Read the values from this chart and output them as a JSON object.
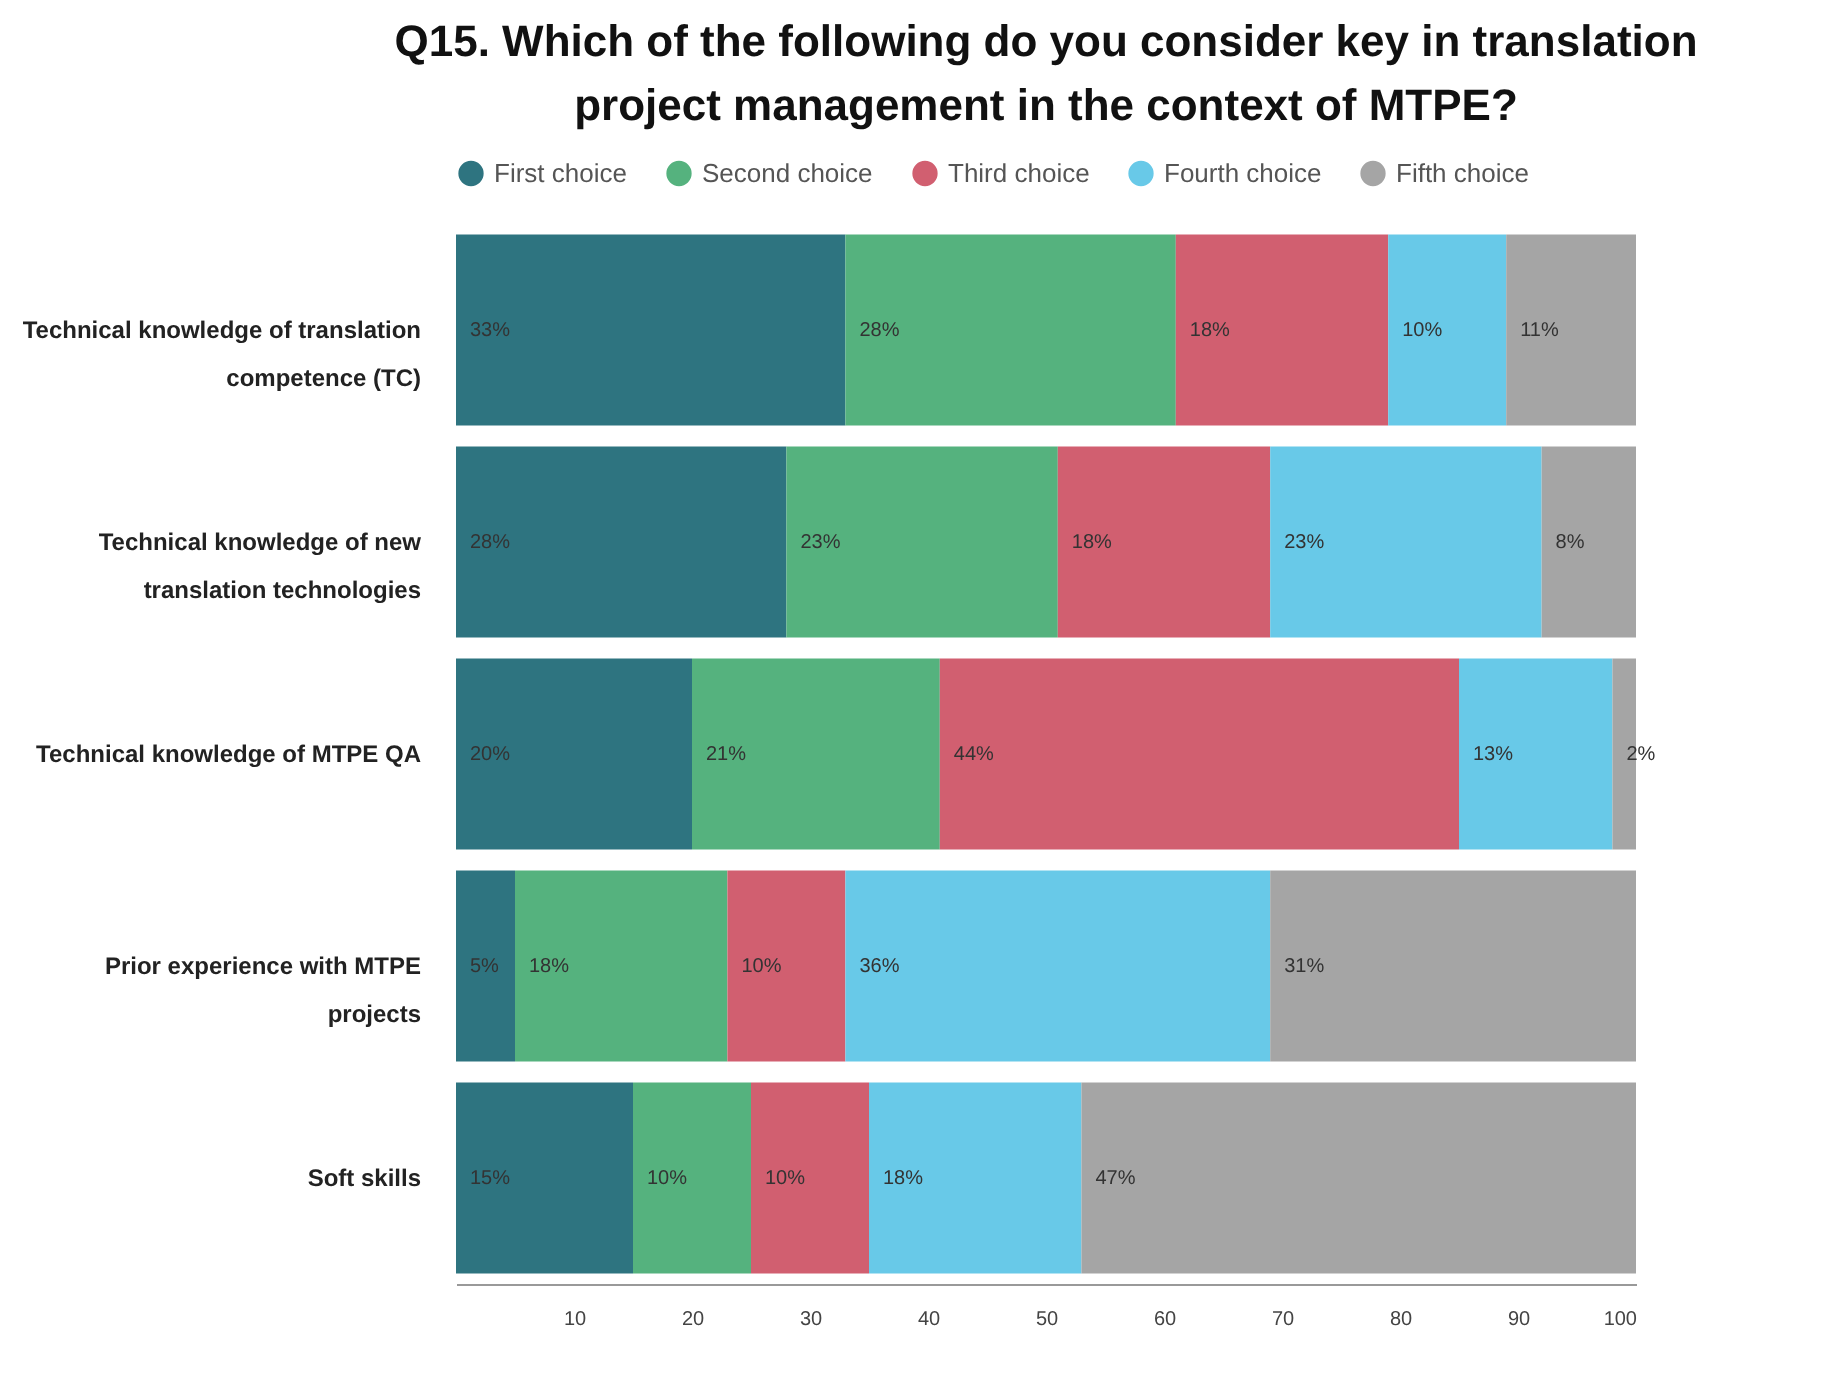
{
  "chart_data": {
    "type": "bar",
    "orientation": "horizontal",
    "stacked": true,
    "title": "Q15. Which of the following do you consider key in translation project management in the context of MTPE?",
    "categories": [
      "Technical knowledge of translation competence (TC)",
      "Technical knowledge of new translation technologies",
      "Technical knowledge of MTPE QA",
      "Prior experience with MTPE projects",
      "Soft skills"
    ],
    "series": [
      {
        "name": "First choice",
        "color": "#2e7480",
        "values": [
          33,
          28,
          20,
          5,
          15
        ],
        "value_labels": [
          "33%",
          "28%",
          "20%",
          "5%",
          "15%"
        ]
      },
      {
        "name": "Second choice",
        "color": "#55b27e",
        "values": [
          28,
          23,
          21,
          18,
          10
        ],
        "value_labels": [
          "28%",
          "23%",
          "21%",
          "18%",
          "10%"
        ]
      },
      {
        "name": "Third choice",
        "color": "#d15f70",
        "values": [
          18,
          18,
          44,
          10,
          10
        ],
        "value_labels": [
          "18%",
          "18%",
          "44%",
          "10%",
          "10%"
        ]
      },
      {
        "name": "Fourth choice",
        "color": "#68c9e8",
        "values": [
          10,
          23,
          13,
          36,
          18
        ],
        "value_labels": [
          "10%",
          "23%",
          "13%",
          "36%",
          "18%"
        ]
      },
      {
        "name": "Fifth choice",
        "color": "#a5a5a5",
        "values": [
          11,
          8,
          2,
          31,
          47
        ],
        "value_labels": [
          "11%",
          "8%",
          "2%",
          "31%",
          "47%"
        ]
      }
    ],
    "xlim": [
      0,
      100
    ],
    "xticks": [
      10,
      20,
      30,
      40,
      50,
      60,
      70,
      80,
      90,
      100
    ],
    "legend": "top"
  }
}
